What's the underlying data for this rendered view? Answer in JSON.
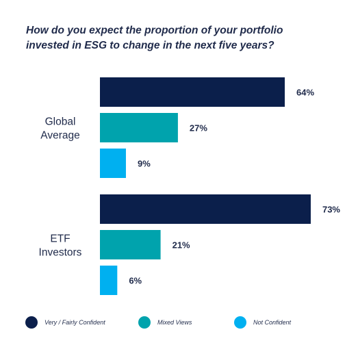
{
  "chart_data": {
    "type": "bar",
    "orientation": "horizontal",
    "title_lines": [
      "How do you expect the proportion of your portfolio",
      "invested in ESG to change in the next five years?"
    ],
    "categories": [
      [
        "Global",
        "Average"
      ],
      [
        "ETF",
        "Investors"
      ]
    ],
    "series": [
      {
        "name": "Very / Fairly Confident",
        "color": "#0b1f4b",
        "values": [
          64,
          73
        ],
        "labels": [
          "64%",
          "73%"
        ]
      },
      {
        "name": "Mixed Views",
        "color": "#00a3ad",
        "values": [
          27,
          21
        ],
        "labels": [
          "27%",
          "21%"
        ]
      },
      {
        "name": "Not Confident",
        "color": "#00b0f0",
        "values": [
          9,
          6
        ],
        "labels": [
          "9%",
          "6%"
        ]
      }
    ],
    "xlim": [
      0,
      100
    ],
    "grid": false,
    "legend_position": "bottom"
  }
}
